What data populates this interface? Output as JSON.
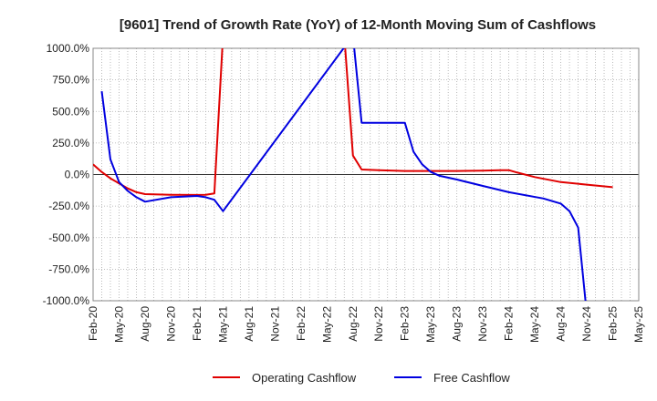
{
  "chart_data": {
    "type": "line",
    "title": "[9601]  Trend of Growth Rate (YoY) of 12-Month Moving Sum of Cashflows",
    "xlabel": "",
    "ylabel": "",
    "ylim": [
      -1000,
      1000
    ],
    "yticks": [
      1000,
      750,
      500,
      250,
      0,
      -250,
      -500,
      -750,
      -1000
    ],
    "ytick_labels": [
      "1000.0%",
      "750.0%",
      "500.0%",
      "250.0%",
      "0.0%",
      "-250.0%",
      "-500.0%",
      "-750.0%",
      "-1000.0%"
    ],
    "x_labels": [
      "Feb-20",
      "May-20",
      "Aug-20",
      "Nov-20",
      "Feb-21",
      "May-21",
      "Aug-21",
      "Nov-21",
      "Feb-22",
      "May-22",
      "Aug-22",
      "Nov-22",
      "Feb-23",
      "May-23",
      "Aug-23",
      "Nov-23",
      "Feb-24",
      "May-24",
      "Aug-24",
      "Nov-24",
      "Feb-25",
      "May-25"
    ],
    "grid": true,
    "legend_position": "bottom",
    "zero_line_color": "#333333",
    "series": [
      {
        "name": "Operating Cashflow",
        "color": "#e00000",
        "points": [
          [
            "Feb-20",
            80
          ],
          [
            "Mar-20",
            20
          ],
          [
            "Apr-20",
            -30
          ],
          [
            "May-20",
            -70
          ],
          [
            "Jun-20",
            -110
          ],
          [
            "Jul-20",
            -140
          ],
          [
            "Aug-20",
            -155
          ],
          [
            "Nov-20",
            -160
          ],
          [
            "Feb-21",
            -162
          ],
          [
            "Mar-21",
            -160
          ],
          [
            "Apr-21",
            -150
          ],
          [
            "May-21",
            1100
          ],
          [
            "Jul-22",
            1100
          ],
          [
            "Aug-22",
            150
          ],
          [
            "Sep-22",
            40
          ],
          [
            "Nov-22",
            35
          ],
          [
            "Feb-23",
            28
          ],
          [
            "May-23",
            28
          ],
          [
            "Aug-23",
            28
          ],
          [
            "Nov-23",
            30
          ],
          [
            "Jan-24",
            35
          ],
          [
            "Feb-24",
            35
          ],
          [
            "Mar-24",
            15
          ],
          [
            "May-24",
            -20
          ],
          [
            "Aug-24",
            -60
          ],
          [
            "Nov-24",
            -80
          ],
          [
            "Feb-25",
            -100
          ]
        ]
      },
      {
        "name": "Free Cashflow",
        "color": "#0000e0",
        "points": [
          [
            "Mar-20",
            660
          ],
          [
            "Apr-20",
            120
          ],
          [
            "May-20",
            -60
          ],
          [
            "Jun-20",
            -130
          ],
          [
            "Jul-20",
            -180
          ],
          [
            "Aug-20",
            -215
          ],
          [
            "Nov-20",
            -180
          ],
          [
            "Feb-21",
            -170
          ],
          [
            "Mar-21",
            -180
          ],
          [
            "Apr-21",
            -200
          ],
          [
            "May-21",
            -290
          ],
          [
            "Aug-22",
            1100
          ],
          [
            "Sep-22",
            410
          ],
          [
            "Nov-22",
            410
          ],
          [
            "Jan-23",
            410
          ],
          [
            "Feb-23",
            410
          ],
          [
            "Mar-23",
            180
          ],
          [
            "Apr-23",
            80
          ],
          [
            "May-23",
            20
          ],
          [
            "Jun-23",
            -10
          ],
          [
            "Aug-23",
            -40
          ],
          [
            "Nov-23",
            -90
          ],
          [
            "Feb-24",
            -140
          ],
          [
            "Jun-24",
            -190
          ],
          [
            "Aug-24",
            -230
          ],
          [
            "Sep-24",
            -290
          ],
          [
            "Oct-24",
            -420
          ],
          [
            "Nov-24",
            -1100
          ]
        ]
      }
    ]
  }
}
